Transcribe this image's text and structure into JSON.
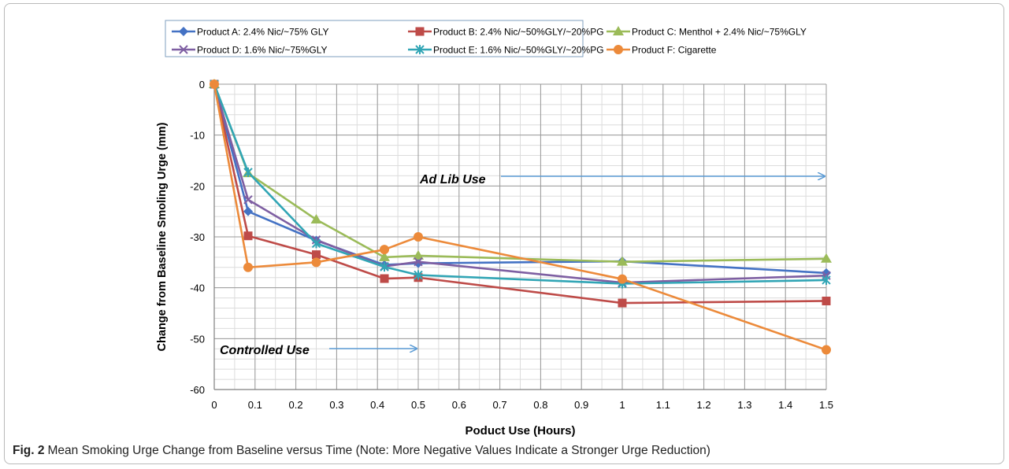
{
  "chart_data": {
    "type": "line",
    "title": "",
    "xlabel": "Poduct Use (Hours)",
    "ylabel": "Change from Baseline Smoling Urge (mm)",
    "xlim": [
      0,
      1.5
    ],
    "ylim": [
      -60,
      0
    ],
    "x_ticks": [
      0,
      0.1,
      0.2,
      0.3,
      0.4,
      0.5,
      0.6,
      0.7,
      0.8,
      0.9,
      1,
      1.1,
      1.2,
      1.3,
      1.4,
      1.5
    ],
    "x_tick_labels": [
      "0",
      "0.1",
      "0.2",
      "0.3",
      "0.4",
      "0.5",
      "0.6",
      "0.7",
      "0.8",
      "0.9",
      "1",
      "1.1",
      "1.2",
      "1.3",
      "1.4",
      "1.5"
    ],
    "y_ticks": [
      0,
      -10,
      -20,
      -30,
      -40,
      -50,
      -60
    ],
    "y_tick_labels": [
      "0",
      "-10",
      "-20",
      "-30",
      "-40",
      "-50",
      "-60"
    ],
    "grid": true,
    "legend_position": "top",
    "series": [
      {
        "name": "Product A: 2.4% Nic/~75% GLY",
        "color": "#4472c4",
        "marker": "diamond",
        "x": [
          0,
          0.083,
          0.25,
          0.417,
          0.5,
          1,
          1.5
        ],
        "y": [
          0,
          -25,
          -30.7,
          -35.5,
          -35.2,
          -34.8,
          -37.1
        ]
      },
      {
        "name": "Product B: 2.4% Nic/~50%GLY/~20%PG",
        "color": "#be4b48",
        "marker": "square",
        "x": [
          0,
          0.083,
          0.25,
          0.417,
          0.5,
          1,
          1.5
        ],
        "y": [
          0,
          -29.8,
          -33.5,
          -38.2,
          -38,
          -43,
          -42.6
        ]
      },
      {
        "name": "Product C: Menthol + 2.4% Nic/~75%GLY",
        "color": "#9bbb59",
        "marker": "triangle",
        "x": [
          0,
          0.083,
          0.25,
          0.417,
          0.5,
          1,
          1.5
        ],
        "y": [
          0,
          -17.5,
          -26.6,
          -34,
          -33.7,
          -34.9,
          -34.3
        ]
      },
      {
        "name": "Product D: 1.6% Nic/~75%GLY",
        "color": "#7e5fa2",
        "marker": "x",
        "x": [
          0,
          0.083,
          0.25,
          0.417,
          0.5,
          1,
          1.5
        ],
        "y": [
          0,
          -22.7,
          -30.6,
          -35.8,
          -34.9,
          -39,
          -37.6
        ]
      },
      {
        "name": "Product E: 1.6% Nic/~50%GLY/~20%PG",
        "color": "#31a5b5",
        "marker": "asterisk",
        "x": [
          0,
          0.083,
          0.25,
          0.417,
          0.5,
          1,
          1.5
        ],
        "y": [
          0,
          -17.3,
          -31.3,
          -35.9,
          -37.5,
          -39.2,
          -38.5
        ]
      },
      {
        "name": "Product F: Cigarette",
        "color": "#ec8a3a",
        "marker": "circle",
        "x": [
          0,
          0.083,
          0.25,
          0.417,
          0.5,
          1,
          1.5
        ],
        "y": [
          0,
          -36,
          -35,
          -32.5,
          -30,
          -38.3,
          -52.2
        ]
      }
    ],
    "annotations": [
      {
        "text": "Ad Lib Use",
        "arrow_to_x": 1.5
      },
      {
        "text": "Controlled Use",
        "arrow_to_x": 0.5
      }
    ]
  },
  "caption": {
    "label": "Fig. 2",
    "text": "Mean Smoking Urge Change from Baseline versus Time (Note: More Negative Values Indicate a Stronger Urge Reduction)"
  }
}
